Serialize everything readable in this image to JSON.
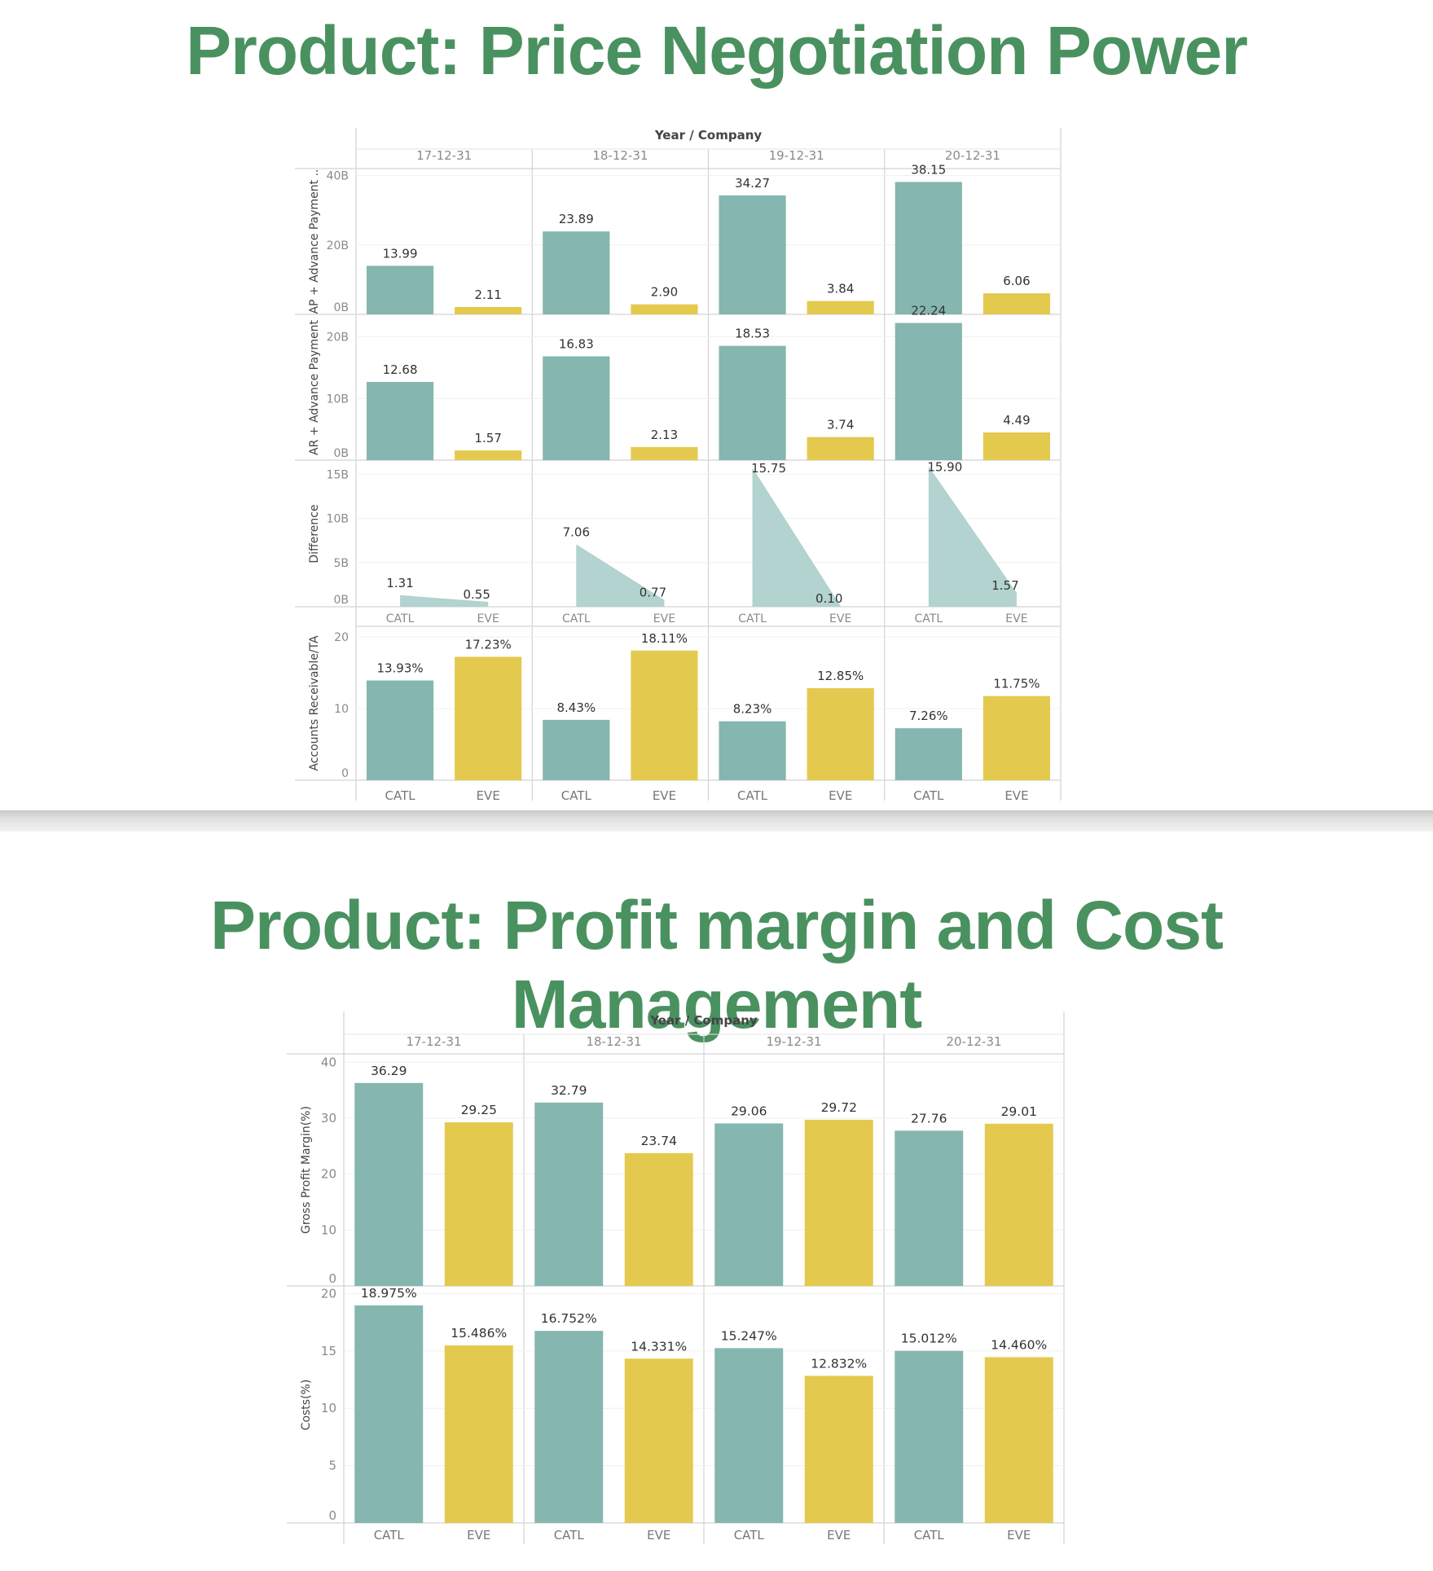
{
  "headings": {
    "top": "Product: Price Negotiation Power",
    "bottom": "Product: Profit margin and Cost Management"
  },
  "colors": {
    "CATL": "#85b6b0",
    "EVE": "#e4c94f",
    "area": "#b2d3cf",
    "heading": "#4a9160"
  },
  "chart_data": [
    {
      "type": "bar",
      "header": "Year / Company",
      "years": [
        "17-12-31",
        "18-12-31",
        "19-12-31",
        "20-12-31"
      ],
      "companies": [
        "CATL",
        "EVE"
      ],
      "rows": [
        {
          "ylabel": "AP + Advance Payment ..",
          "kind": "bar",
          "ylim": [
            0,
            42
          ],
          "ticks": [
            0,
            20,
            40
          ],
          "tick_labels": [
            "0B",
            "20B",
            "40B"
          ],
          "values": [
            [
              13.99,
              2.11
            ],
            [
              23.89,
              2.9
            ],
            [
              34.27,
              3.84
            ],
            [
              38.15,
              6.06
            ]
          ],
          "labels": [
            [
              "13.99",
              "2.11"
            ],
            [
              "23.89",
              "2.90"
            ],
            [
              "34.27",
              "3.84"
            ],
            [
              "38.15",
              "6.06"
            ]
          ]
        },
        {
          "ylabel": "AR + Advance Payment",
          "kind": "bar",
          "ylim": [
            0,
            23.5
          ],
          "ticks": [
            0,
            10,
            20
          ],
          "tick_labels": [
            "0B",
            "10B",
            "20B"
          ],
          "values": [
            [
              12.68,
              1.57
            ],
            [
              16.83,
              2.13
            ],
            [
              18.53,
              3.74
            ],
            [
              22.24,
              4.49
            ]
          ],
          "labels": [
            [
              "12.68",
              "1.57"
            ],
            [
              "16.83",
              "2.13"
            ],
            [
              "18.53",
              "3.74"
            ],
            [
              "22.24",
              "4.49"
            ]
          ]
        },
        {
          "ylabel": "Difference",
          "kind": "area",
          "ylim": [
            0,
            16.5
          ],
          "ticks": [
            0,
            5,
            10,
            15
          ],
          "tick_labels": [
            "0B",
            "5B",
            "10B",
            "15B"
          ],
          "values": [
            [
              1.31,
              0.55
            ],
            [
              7.06,
              0.77
            ],
            [
              15.75,
              0.1
            ],
            [
              15.9,
              1.57
            ]
          ],
          "labels": [
            [
              "1.31",
              "0.55"
            ],
            [
              "7.06",
              "0.77"
            ],
            [
              "15.75",
              "0.10"
            ],
            [
              "15.90",
              "1.57"
            ]
          ]
        },
        {
          "ylabel": "Accounts Receivable/TA",
          "kind": "bar",
          "ylim": [
            0,
            21.5
          ],
          "ticks": [
            0,
            10,
            20
          ],
          "tick_labels": [
            "0",
            "10",
            "20"
          ],
          "values": [
            [
              13.93,
              17.23
            ],
            [
              8.43,
              18.11
            ],
            [
              8.23,
              12.85
            ],
            [
              7.26,
              11.75
            ]
          ],
          "labels": [
            [
              "13.93%",
              "17.23%"
            ],
            [
              "8.43%",
              "18.11%"
            ],
            [
              "8.23%",
              "12.85%"
            ],
            [
              "7.26%",
              "11.75%"
            ]
          ]
        }
      ]
    },
    {
      "type": "bar",
      "header": "Year / Company",
      "years": [
        "17-12-31",
        "18-12-31",
        "19-12-31",
        "20-12-31"
      ],
      "companies": [
        "CATL",
        "EVE"
      ],
      "rows": [
        {
          "ylabel": "Gross Profit Margin(%)",
          "kind": "bar",
          "ylim": [
            0,
            41.5
          ],
          "ticks": [
            0,
            10,
            20,
            30,
            40
          ],
          "tick_labels": [
            "0",
            "10",
            "20",
            "30",
            "40"
          ],
          "values": [
            [
              36.29,
              29.25
            ],
            [
              32.79,
              23.74
            ],
            [
              29.06,
              29.72
            ],
            [
              27.76,
              29.01
            ]
          ],
          "labels": [
            [
              "36.29",
              "29.25"
            ],
            [
              "32.79",
              "23.74"
            ],
            [
              "29.06",
              "29.72"
            ],
            [
              "27.76",
              "29.01"
            ]
          ]
        },
        {
          "ylabel": "Costs(%)",
          "kind": "bar",
          "ylim": [
            0,
            20.6
          ],
          "ticks": [
            0,
            5,
            10,
            15,
            20
          ],
          "tick_labels": [
            "0",
            "5",
            "10",
            "15",
            "20"
          ],
          "values": [
            [
              18.975,
              15.486
            ],
            [
              16.752,
              14.331
            ],
            [
              15.247,
              12.832
            ],
            [
              15.012,
              14.46
            ]
          ],
          "labels": [
            [
              "18.975%",
              "15.486%"
            ],
            [
              "16.752%",
              "14.331%"
            ],
            [
              "15.247%",
              "12.832%"
            ],
            [
              "15.012%",
              "14.460%"
            ]
          ]
        }
      ]
    }
  ]
}
